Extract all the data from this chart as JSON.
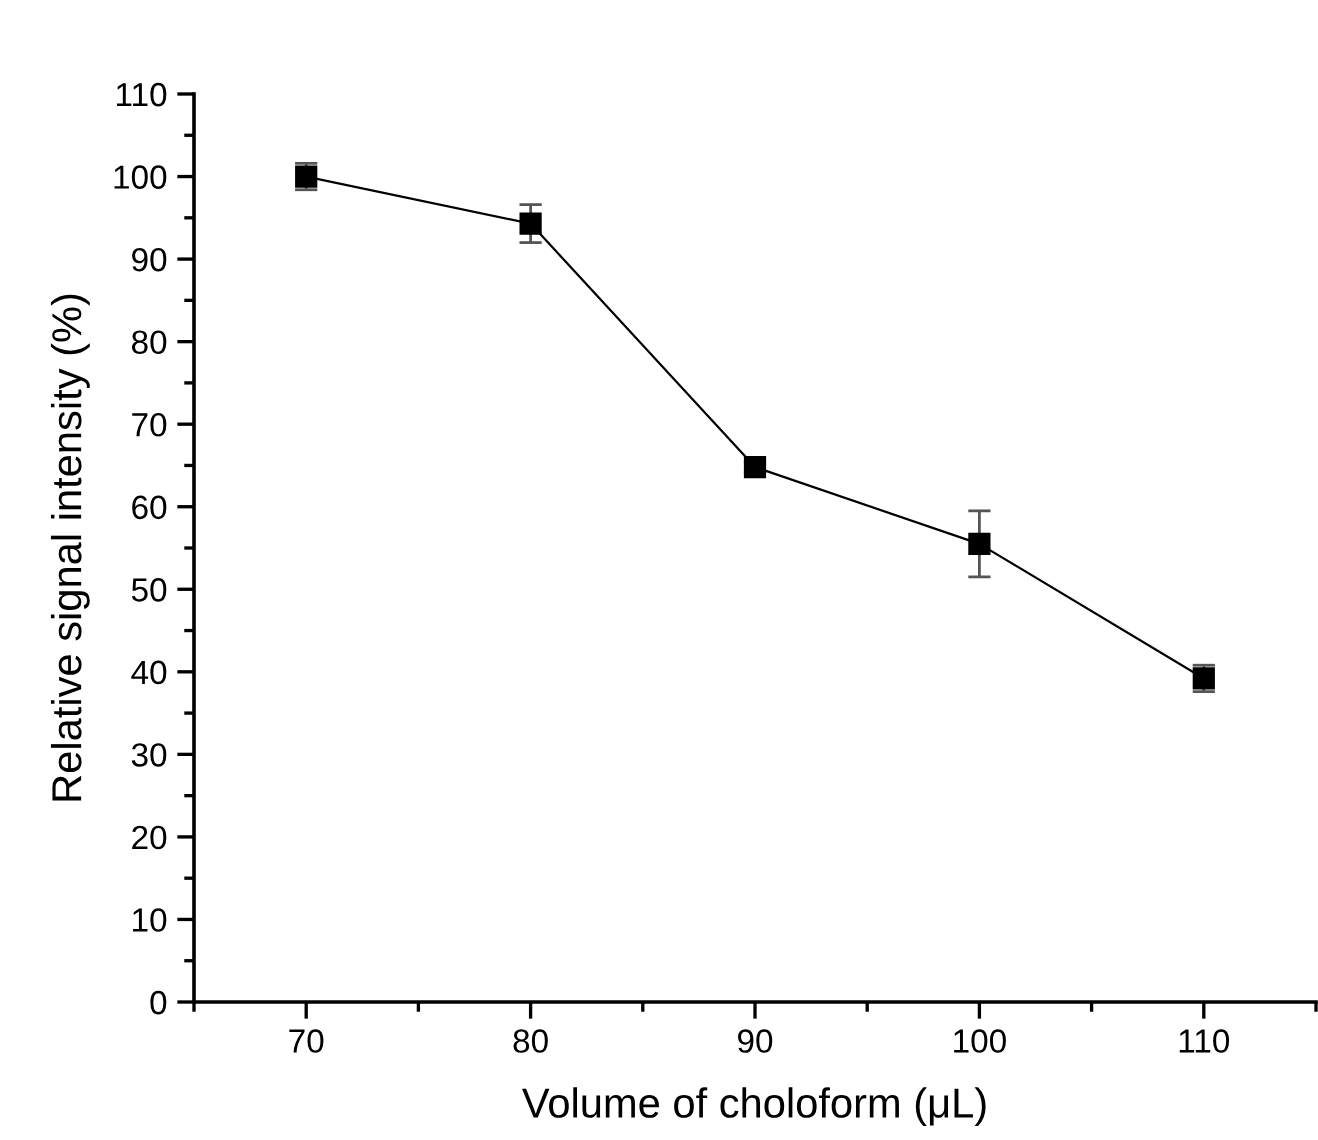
{
  "chart_data": {
    "type": "line",
    "xlabel": "Volume of choloform (μL)",
    "ylabel": "Relative signal intensity (%)",
    "x": [
      70,
      80,
      90,
      100,
      110
    ],
    "series": [
      {
        "color": "#000000",
        "values": [
          100,
          94.3,
          64.8,
          55.5,
          39.2
        ],
        "errors": [
          1.6,
          2.3,
          0.6,
          4,
          1.6
        ]
      }
    ],
    "xlim": [
      65,
      115
    ],
    "xticks": [
      70,
      80,
      90,
      100,
      110
    ],
    "ylim": [
      0,
      110
    ],
    "yticks": [
      0,
      10,
      20,
      30,
      40,
      50,
      60,
      70,
      80,
      90,
      100,
      110
    ],
    "marker": "square",
    "line_style": "solid",
    "grid": false
  }
}
